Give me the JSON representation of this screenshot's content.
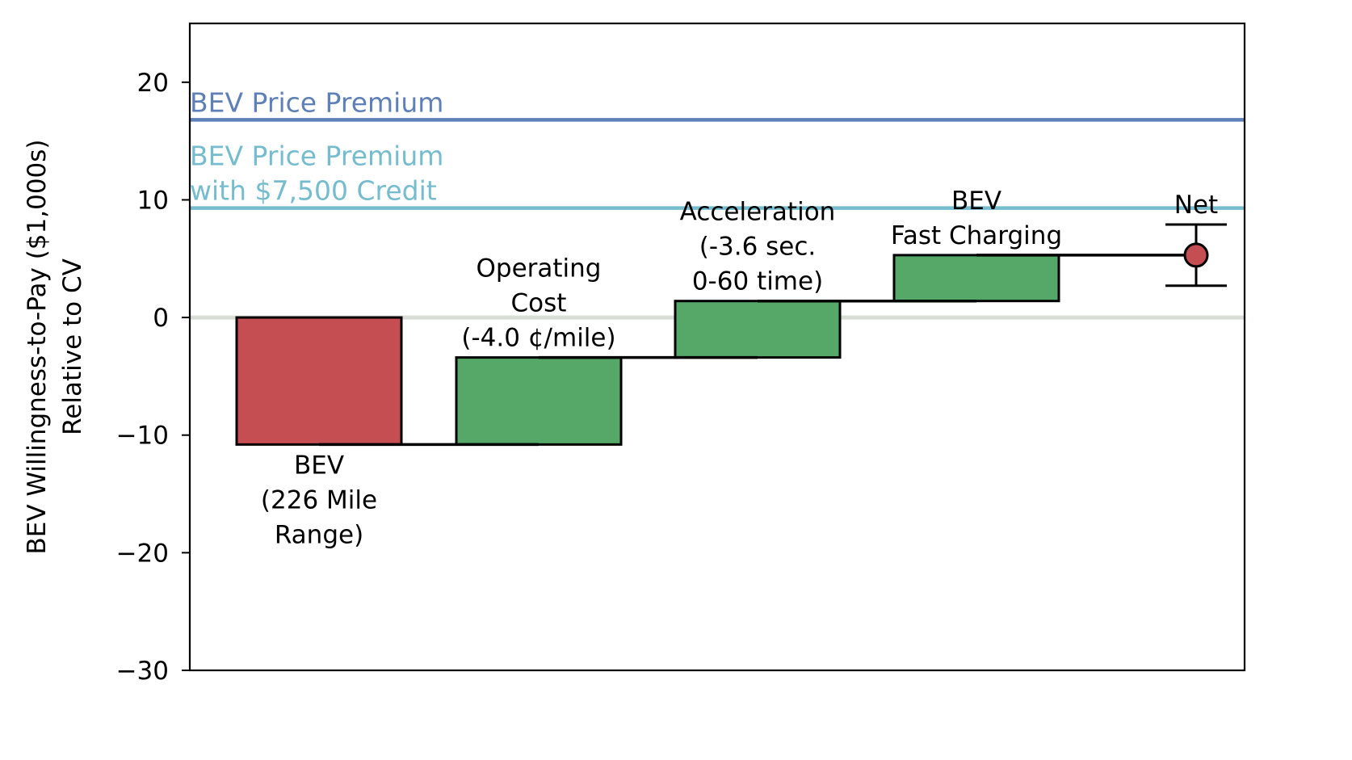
{
  "chart_data": {
    "type": "waterfall",
    "ylabel_lines": [
      "BEV Willingness-to-Pay ($1,000s)",
      "Relative to CV"
    ],
    "xlabel": "",
    "ylim": [
      -30,
      25
    ],
    "yticks": [
      20,
      10,
      0,
      -10,
      -20,
      -30
    ],
    "ytick_labels": [
      "20",
      "10",
      "0",
      "−10",
      "−20",
      "−30"
    ],
    "zero_line_color": "#d8ddd6",
    "steps": [
      {
        "label_lines": [
          "BEV",
          "(226 Mile",
          "Range)"
        ],
        "start": 0,
        "end": -10.8,
        "color": "#c44e52",
        "label_position": "below"
      },
      {
        "label_lines": [
          "Operating",
          "Cost",
          "(-4.0 ¢/mile)"
        ],
        "start": -10.8,
        "end": -3.4,
        "color": "#55a868",
        "label_position": "above"
      },
      {
        "label_lines": [
          "Acceleration",
          "(-3.6 sec.",
          "0-60 time)"
        ],
        "start": -3.4,
        "end": 1.4,
        "color": "#55a868",
        "label_position": "above"
      },
      {
        "label_lines": [
          "BEV",
          "Fast Charging"
        ],
        "start": 1.4,
        "end": 5.3,
        "color": "#55a868",
        "label_position": "above"
      }
    ],
    "net": {
      "label": "Net",
      "value": 5.3,
      "lower": 2.7,
      "upper": 7.9,
      "color": "#c44e52"
    },
    "reference_lines": [
      {
        "label_lines": [
          "BEV Price Premium"
        ],
        "value": 16.8,
        "color": "#5f7fb8"
      },
      {
        "label_lines": [
          "BEV Price Premium",
          "with $7,500 Credit"
        ],
        "value": 9.3,
        "color": "#76bccf"
      }
    ],
    "grid": false,
    "legend": "none"
  }
}
